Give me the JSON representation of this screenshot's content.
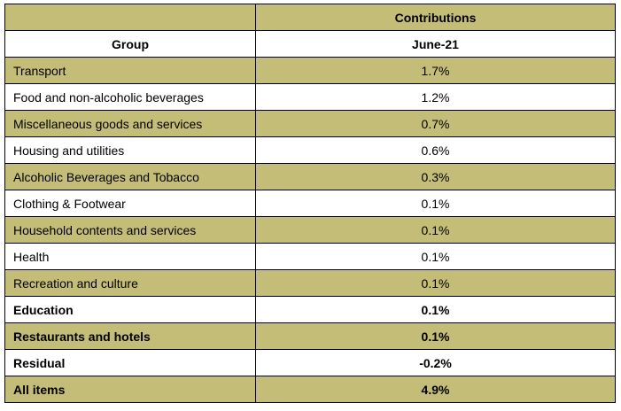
{
  "table": {
    "header_top": "Contributions",
    "header_group": "Group",
    "header_period": "June-21",
    "rows": [
      {
        "group": "Transport",
        "value": "1.7%",
        "bold": false
      },
      {
        "group": "Food and non-alcoholic beverages",
        "value": "1.2%",
        "bold": false
      },
      {
        "group": "Miscellaneous goods and services",
        "value": "0.7%",
        "bold": false
      },
      {
        "group": "Housing and utilities",
        "value": "0.6%",
        "bold": false
      },
      {
        "group": "Alcoholic Beverages and Tobacco",
        "value": "0.3%",
        "bold": false
      },
      {
        "group": "Clothing & Footwear",
        "value": "0.1%",
        "bold": false
      },
      {
        "group": "Household contents and services",
        "value": "0.1%",
        "bold": false
      },
      {
        "group": "Health",
        "value": "0.1%",
        "bold": false
      },
      {
        "group": "Recreation and culture",
        "value": "0.1%",
        "bold": false
      },
      {
        "group": "Education",
        "value": "0.1%",
        "bold": true
      },
      {
        "group": "Restaurants and hotels",
        "value": "0.1%",
        "bold": true
      },
      {
        "group": "Residual",
        "value": "-0.2%",
        "bold": true
      },
      {
        "group": "All items",
        "value": "4.9%",
        "bold": true
      }
    ]
  },
  "colors": {
    "shade": "#c3bd77",
    "plain": "#ffffff",
    "border": "#000000"
  }
}
